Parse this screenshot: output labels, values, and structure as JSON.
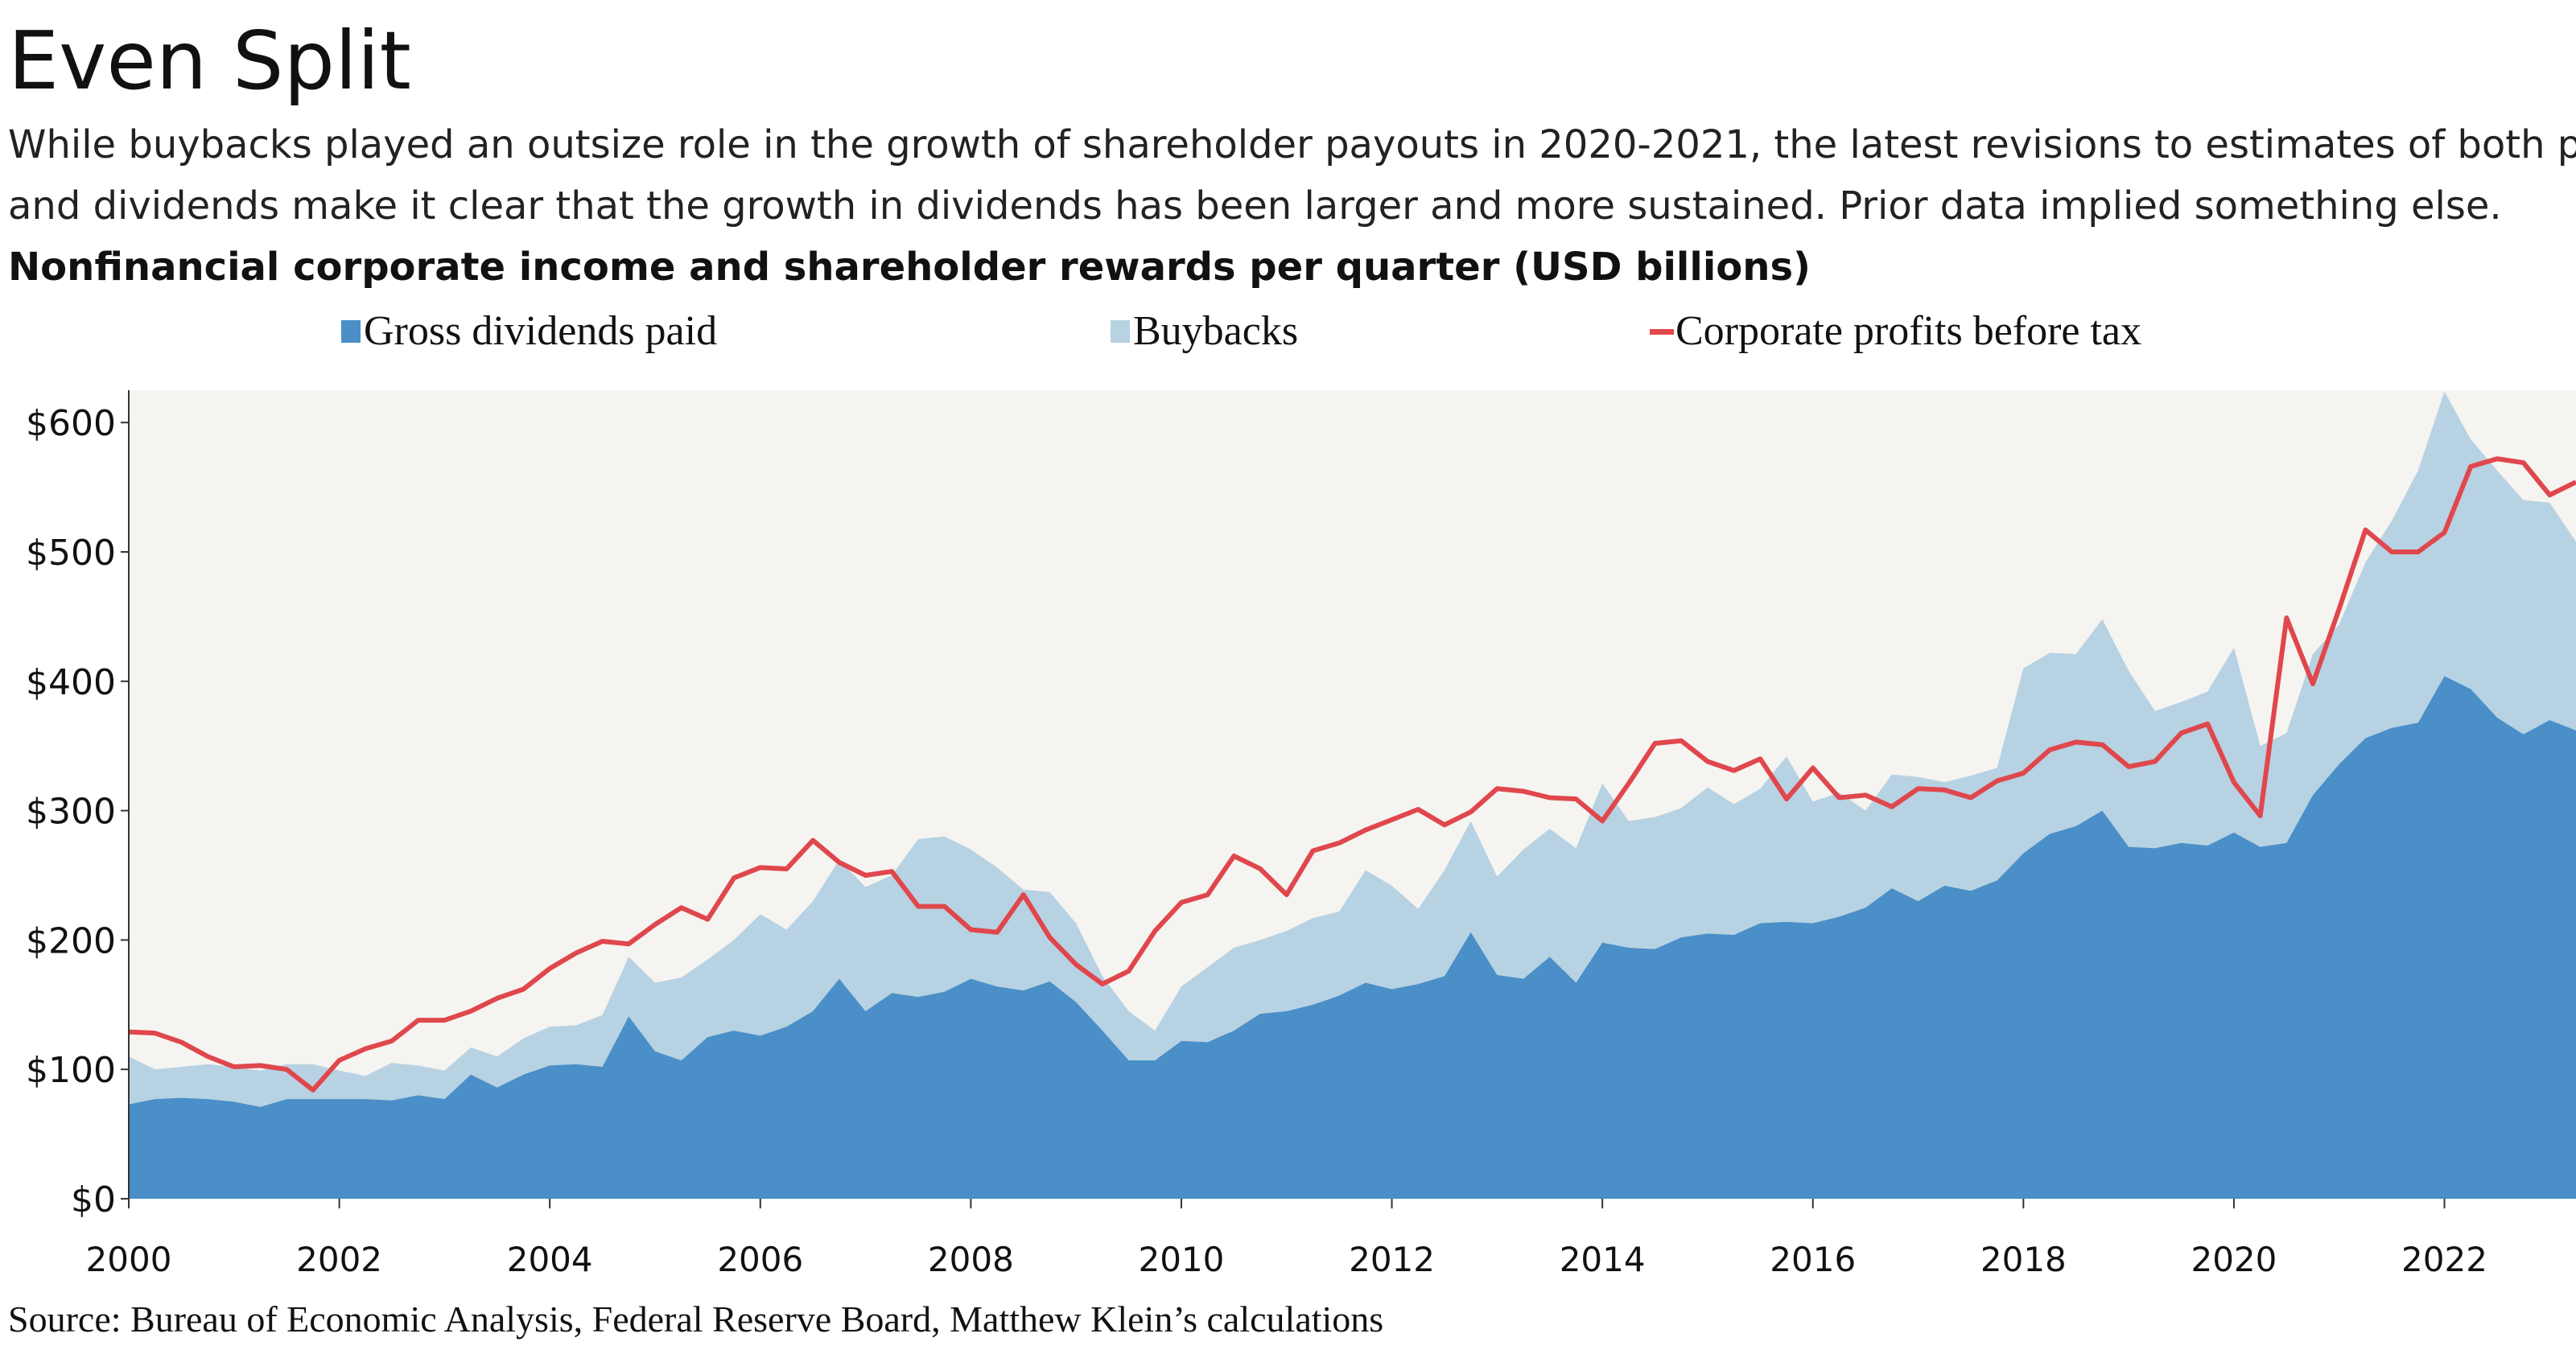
{
  "title": "Even Split",
  "subtitle": "While buybacks played an outsize role in the growth of shareholder payouts in 2020-2021, the latest revisions to estimates of both profits and dividends make it clear that the growth in dividends has been larger and more sustained. Prior data implied something else.",
  "source": "Source: Bureau of Economic Analysis, Federal Reserve Board, Matthew Klein’s calculations",
  "colors": {
    "dividends": "#4a8fc7",
    "buybacks": "#b7d2e2",
    "profits": "#e0474c",
    "plot_background": "#f5f4f1",
    "text": "#111111"
  },
  "chart_data": {
    "type": "area",
    "title": "Nonfinancial corporate income and shareholder rewards per quarter (USD billions)",
    "xlabel": "",
    "ylabel": "",
    "x_start": 2000,
    "x_step": 0.25,
    "xlim": [
      2000,
      2023.25
    ],
    "ylim": [
      0,
      625
    ],
    "x_ticks": [
      2000,
      2002,
      2004,
      2006,
      2008,
      2010,
      2012,
      2014,
      2016,
      2018,
      2020,
      2022
    ],
    "x_tick_labels": [
      "2000",
      "2002",
      "2004",
      "2006",
      "2008",
      "2010",
      "2012",
      "2014",
      "2016",
      "2018",
      "2020",
      "2022"
    ],
    "y_ticks": [
      0,
      100,
      200,
      300,
      400,
      500,
      600
    ],
    "y_tick_labels": [
      "$0",
      "$100",
      "$200",
      "$300",
      "$400",
      "$500",
      "$600"
    ],
    "grid": false,
    "legend": "top",
    "stacked": true,
    "series": [
      {
        "name": "Gross dividends paid",
        "kind": "area",
        "values": [
          73,
          77,
          78,
          77,
          75,
          71,
          77,
          77,
          77,
          77,
          76,
          80,
          77,
          96,
          86,
          96,
          103,
          104,
          102,
          141,
          114,
          107,
          125,
          130,
          126,
          133,
          145,
          170,
          145,
          159,
          156,
          160,
          170,
          164,
          161,
          168,
          152,
          130,
          107,
          107,
          122,
          121,
          130,
          143,
          145,
          150,
          157,
          167,
          162,
          166,
          172,
          206,
          173,
          170,
          187,
          167,
          198,
          194,
          193,
          202,
          205,
          204,
          213,
          214,
          213,
          218,
          225,
          240,
          230,
          242,
          238,
          246,
          267,
          282,
          288,
          300,
          272,
          271,
          275,
          273,
          283,
          272,
          275,
          312,
          336,
          356,
          364,
          368,
          404,
          394,
          372,
          359,
          370,
          362
        ]
      },
      {
        "name": "Buybacks",
        "kind": "stacked-area",
        "values": [
          37,
          23,
          24,
          27,
          27,
          28,
          27,
          27,
          22,
          18,
          29,
          23,
          22,
          21,
          24,
          28,
          30,
          30,
          40,
          46,
          53,
          64,
          60,
          70,
          94,
          75,
          85,
          92,
          96,
          91,
          122,
          120,
          100,
          92,
          78,
          69,
          61,
          42,
          38,
          23,
          42,
          58,
          64,
          57,
          62,
          67,
          65,
          87,
          80,
          58,
          82,
          86,
          76,
          100,
          99,
          104,
          123,
          98,
          102,
          100,
          113,
          101,
          104,
          128,
          94,
          96,
          75,
          88,
          96,
          80,
          89,
          87,
          143,
          140,
          133,
          148,
          136,
          106,
          109,
          119,
          143,
          78,
          85,
          109,
          108,
          136,
          160,
          195,
          220,
          193,
          191,
          181,
          168,
          146
        ]
      },
      {
        "name": "Corporate profits before tax",
        "kind": "line",
        "values": [
          129,
          128,
          121,
          110,
          102,
          103,
          100,
          84,
          107,
          116,
          122,
          138,
          138,
          145,
          155,
          162,
          178,
          190,
          199,
          197,
          212,
          225,
          216,
          248,
          256,
          255,
          277,
          260,
          250,
          253,
          226,
          226,
          208,
          206,
          235,
          202,
          181,
          166,
          176,
          207,
          229,
          235,
          265,
          255,
          235,
          269,
          275,
          285,
          293,
          301,
          289,
          299,
          317,
          315,
          310,
          309,
          292,
          321,
          352,
          354,
          338,
          331,
          340,
          309,
          333,
          310,
          312,
          303,
          317,
          316,
          310,
          323,
          329,
          347,
          353,
          351,
          334,
          338,
          360,
          367,
          322,
          296,
          449,
          398,
          456,
          517,
          500,
          500,
          515,
          566,
          572,
          569,
          544,
          554
        ]
      }
    ]
  }
}
